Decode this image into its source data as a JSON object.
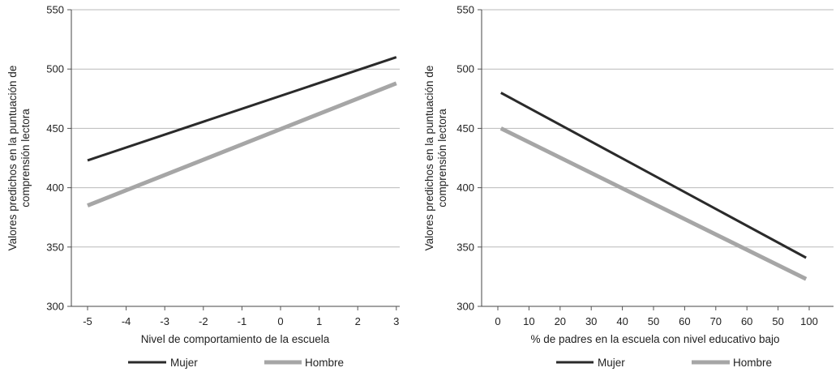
{
  "chart_data": [
    {
      "type": "line",
      "title": "",
      "xlabel": "Nivel de comportamiento de la escuela",
      "ylabel": [
        "Valores predichos en la puntuación de",
        "comprensión lectora"
      ],
      "x_ticks": [
        "-5",
        "-4",
        "-3",
        "-2",
        "-1",
        "0",
        "1",
        "2",
        "3"
      ],
      "x_range": [
        -5,
        3
      ],
      "y_ticks": [
        "300",
        "350",
        "400",
        "450",
        "500",
        "550"
      ],
      "ylim": [
        300,
        550
      ],
      "grid": "horizontal",
      "legend_position": "bottom",
      "series": [
        {
          "name": "Mujer",
          "color": "#2a2a2a",
          "x": [
            -5,
            3
          ],
          "y": [
            423,
            510
          ]
        },
        {
          "name": "Hombre",
          "color": "#a6a6a6",
          "x": [
            -5,
            3
          ],
          "y": [
            385,
            488
          ]
        }
      ]
    },
    {
      "type": "line",
      "title": "",
      "xlabel": "% de padres en la escuela con nivel educativo bajo",
      "ylabel": [
        "Valores predichos en la puntuación de",
        "comprensión lectora"
      ],
      "x_ticks": [
        "0",
        "10",
        "20",
        "30",
        "40",
        "50",
        "60",
        "70",
        "60",
        "50",
        "100"
      ],
      "x_range": [
        0,
        100
      ],
      "y_ticks": [
        "300",
        "350",
        "400",
        "450",
        "500",
        "550"
      ],
      "ylim": [
        300,
        550
      ],
      "grid": "horizontal",
      "legend_position": "bottom",
      "series": [
        {
          "name": "Mujer",
          "color": "#2a2a2a",
          "x": [
            1,
            99
          ],
          "y": [
            480,
            341
          ]
        },
        {
          "name": "Hombre",
          "color": "#a6a6a6",
          "x": [
            1,
            99
          ],
          "y": [
            450,
            323
          ]
        }
      ]
    }
  ]
}
